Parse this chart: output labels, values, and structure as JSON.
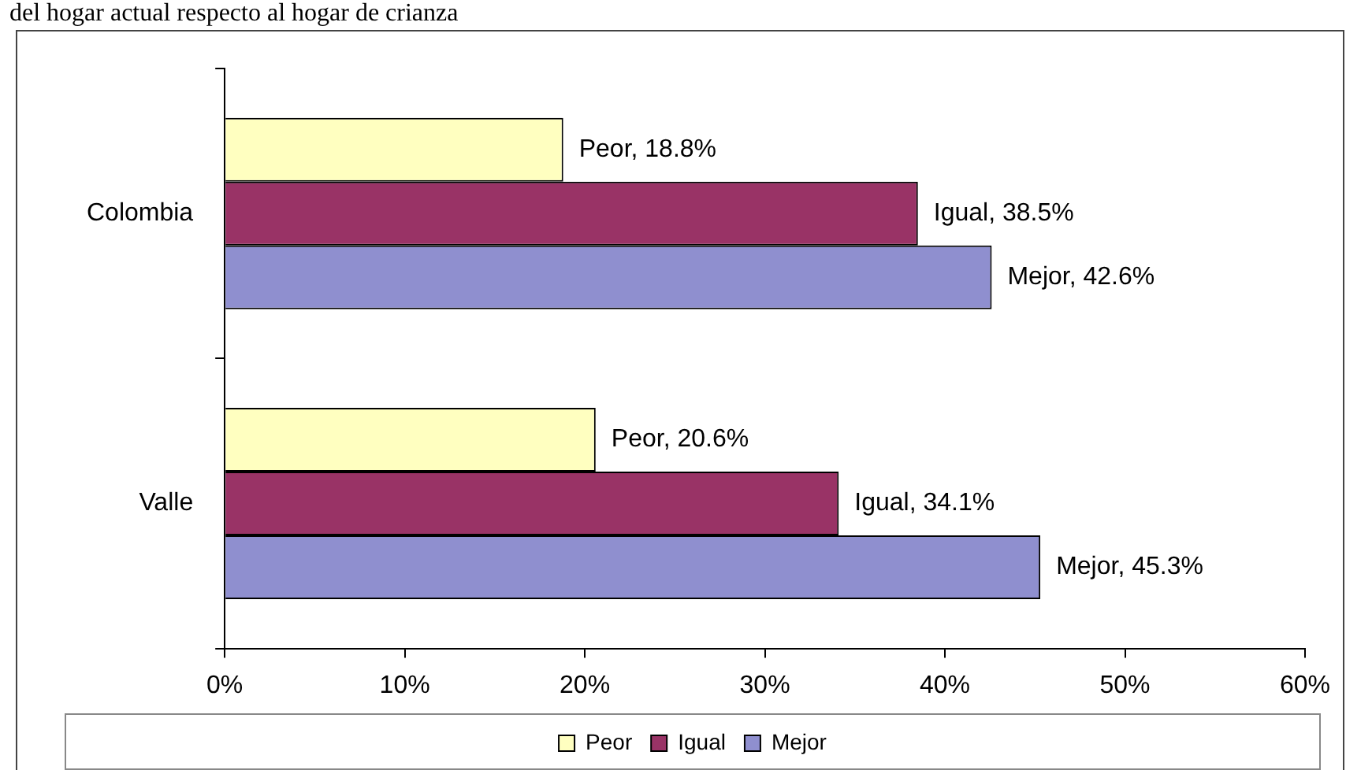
{
  "chart_data": {
    "type": "bar",
    "orientation": "horizontal",
    "title": "del hogar actual respecto al hogar de crianza",
    "categories": [
      "Colombia",
      "Valle"
    ],
    "series": [
      {
        "name": "Peor",
        "color": "#ffffc0",
        "values": [
          18.8,
          20.6
        ],
        "value_labels": [
          "Peor, 18.8%",
          "Peor, 20.6%"
        ]
      },
      {
        "name": "Igual",
        "color": "#993366",
        "values": [
          38.5,
          34.1
        ],
        "value_labels": [
          "Igual, 38.5%",
          "Igual, 34.1%"
        ]
      },
      {
        "name": "Mejor",
        "color": "#8f8fcf",
        "values": [
          42.6,
          45.3
        ],
        "value_labels": [
          "Mejor, 42.6%",
          "Mejor, 45.3%"
        ]
      }
    ],
    "xlim": [
      0,
      60
    ],
    "xticks": [
      {
        "value": 0,
        "label": "0%"
      },
      {
        "value": 10,
        "label": "10%"
      },
      {
        "value": 20,
        "label": "20%"
      },
      {
        "value": 30,
        "label": "30%"
      },
      {
        "value": 40,
        "label": "40%"
      },
      {
        "value": 50,
        "label": "50%"
      },
      {
        "value": 60,
        "label": "60%"
      }
    ],
    "grid": false,
    "legend": "bottom"
  }
}
